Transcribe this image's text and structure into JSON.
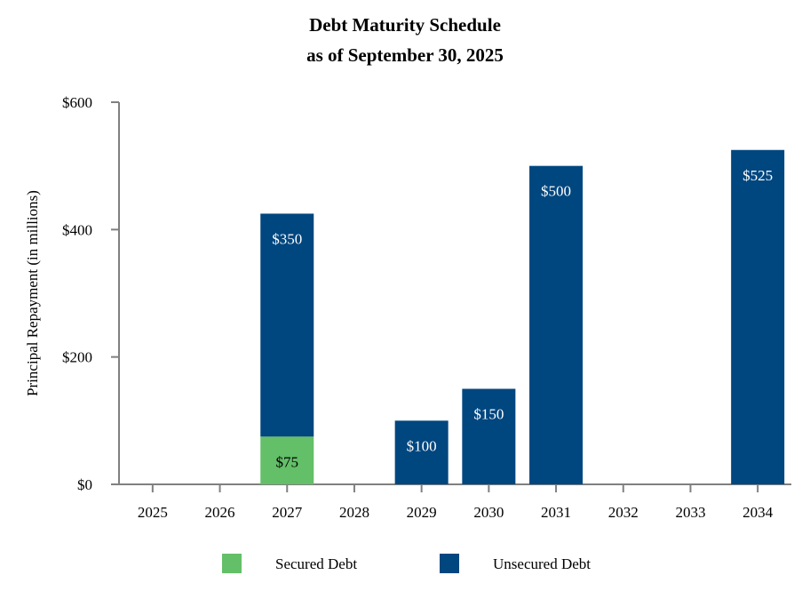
{
  "chart_data": {
    "type": "bar",
    "stacked": true,
    "title": [
      "Debt Maturity Schedule",
      "as of September 30, 2025"
    ],
    "xlabel": "",
    "ylabel": "Principal Repayment (in millions)",
    "ylim": [
      0,
      600
    ],
    "yticks": [
      0,
      200,
      400,
      600
    ],
    "ytick_labels": [
      "$0",
      "$200",
      "$400",
      "$600"
    ],
    "grid": false,
    "legend_position": "bottom",
    "categories": [
      "2025",
      "2026",
      "2027",
      "2028",
      "2029",
      "2030",
      "2031",
      "2032",
      "2033",
      "2034"
    ],
    "series": [
      {
        "name": "Secured Debt",
        "color": "#63bf68",
        "label_color": "#000000",
        "values": [
          0,
          0,
          75,
          0,
          0,
          0,
          0,
          0,
          0,
          0
        ],
        "labels": [
          "",
          "",
          "$75",
          "",
          "",
          "",
          "",
          "",
          "",
          ""
        ]
      },
      {
        "name": "Unsecured Debt",
        "color": "#00467f",
        "label_color": "#ffffff",
        "values": [
          0,
          0,
          350,
          0,
          100,
          150,
          500,
          0,
          0,
          525
        ],
        "labels": [
          "",
          "",
          "$350",
          "",
          "$100",
          "$150",
          "$500",
          "",
          "",
          "$525"
        ]
      }
    ]
  }
}
